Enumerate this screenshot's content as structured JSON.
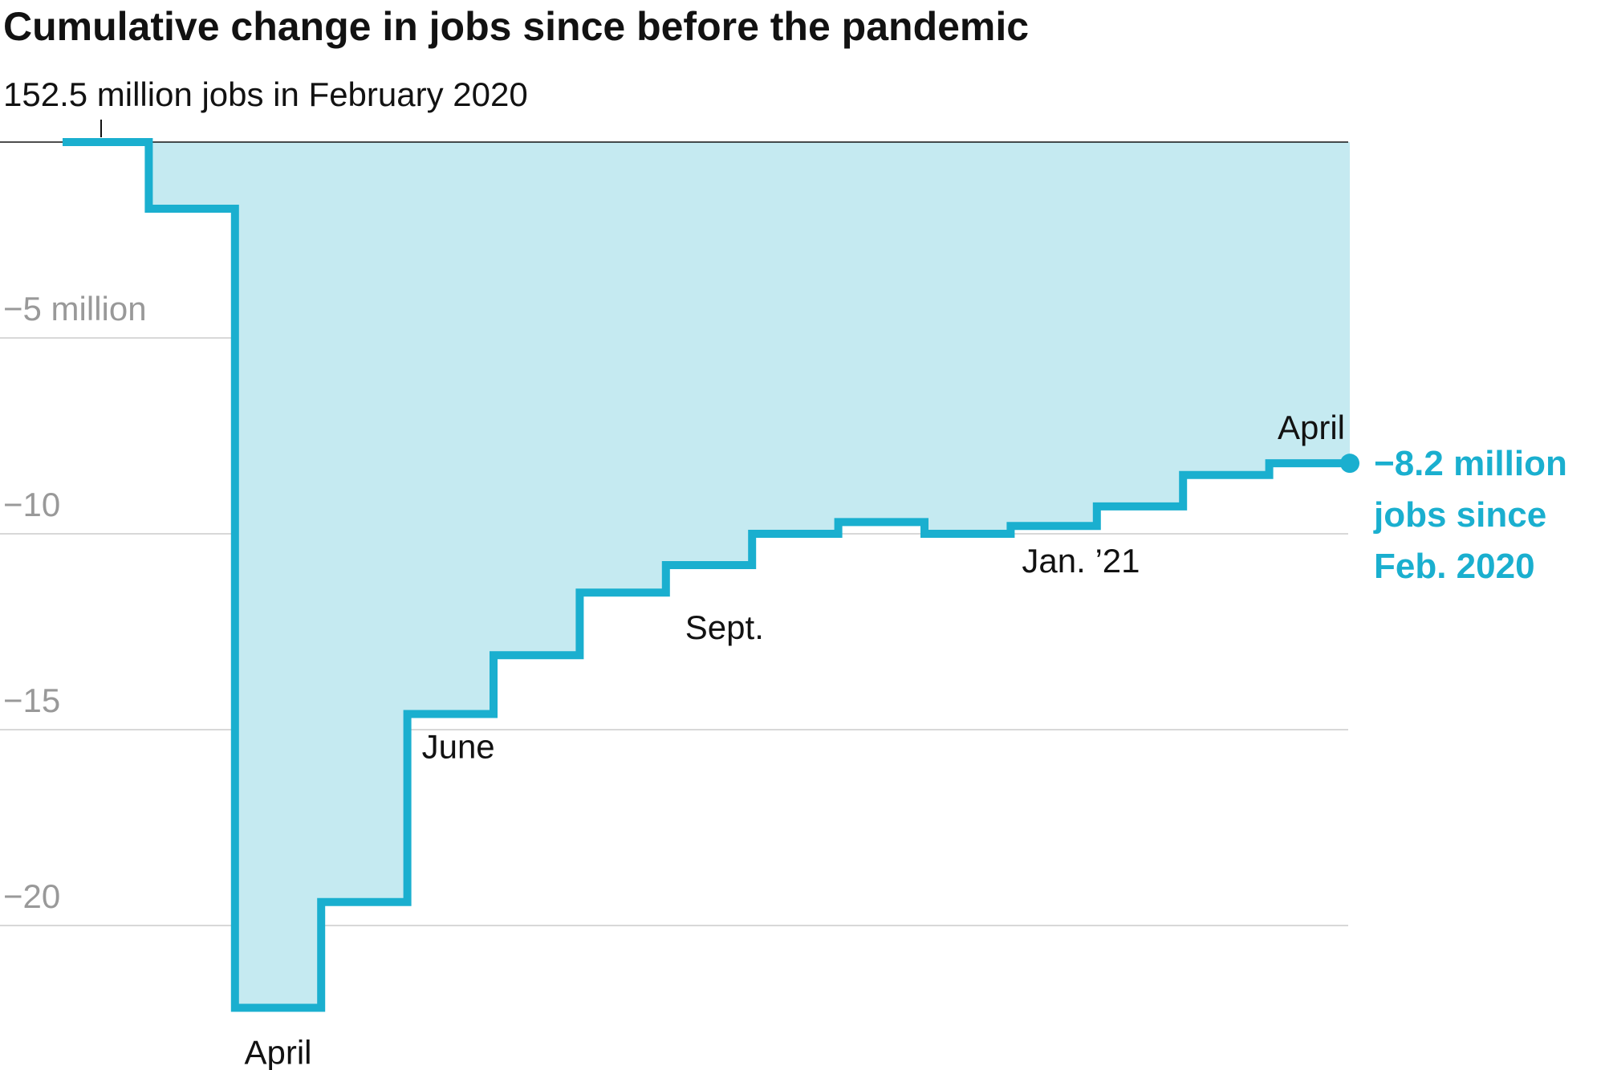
{
  "chart_data": {
    "type": "area",
    "title": "Cumulative change in jobs since before the pandemic",
    "subtitle": "152.5 million jobs in February 2020",
    "series_color": "#1aafcf",
    "fill_color": "#c5eaf1",
    "ylim": [
      -23.5,
      0
    ],
    "yticks": [
      {
        "value": -5,
        "label": "−5 million"
      },
      {
        "value": -10,
        "label": "−10"
      },
      {
        "value": -15,
        "label": "−15"
      },
      {
        "value": -20,
        "label": "−20"
      }
    ],
    "x": [
      "2020-02",
      "2020-03",
      "2020-04",
      "2020-05",
      "2020-06",
      "2020-07",
      "2020-08",
      "2020-09",
      "2020-10",
      "2020-11",
      "2020-12",
      "2021-01",
      "2021-02",
      "2021-03",
      "2021-04"
    ],
    "values": [
      0,
      -1.7,
      -22.1,
      -19.4,
      -14.6,
      -13.1,
      -11.5,
      -10.8,
      -10.0,
      -9.7,
      -10.0,
      -9.8,
      -9.3,
      -8.5,
      -8.2
    ],
    "x_labels": [
      {
        "index": 2,
        "label": "April",
        "placement": "below"
      },
      {
        "index": 4,
        "label": "June",
        "placement": "below"
      },
      {
        "index": 7,
        "label": "Sept.",
        "placement": "below"
      },
      {
        "index": 11,
        "label": "Jan. ’21",
        "placement": "below"
      },
      {
        "index": 14,
        "label": "April",
        "placement": "above"
      }
    ],
    "end_label": [
      "−8.2 million",
      "jobs since",
      "Feb. 2020"
    ]
  }
}
